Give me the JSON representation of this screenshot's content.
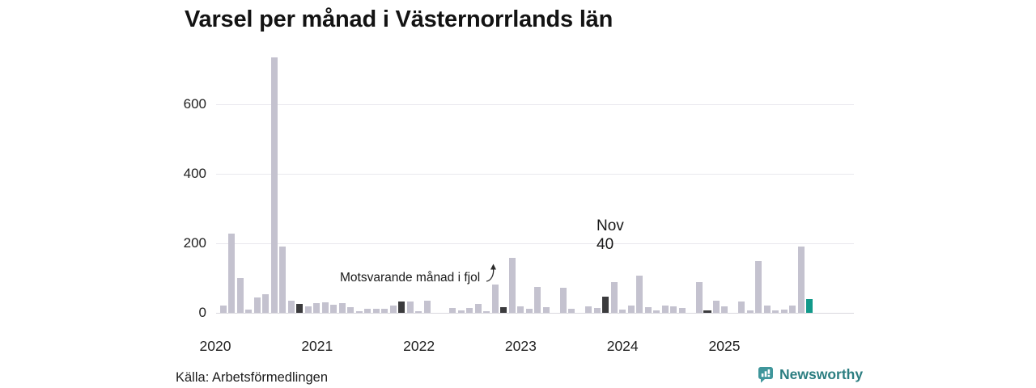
{
  "header": {
    "title": "Varsel per månad i Västernorrlands län"
  },
  "annotation": {
    "text": "Motsvarande månad i fjol"
  },
  "highlight": {
    "line1": "Nov",
    "line2": "40"
  },
  "footer": {
    "source": "Källa: Arbetsförmedlingen",
    "brand": "Newsworthy"
  },
  "colors": {
    "bar": "#c4c2cf",
    "november": "#3b3b3d",
    "current": "#12998a",
    "grid": "#e9e8ee",
    "icon_teal": "#3f969b",
    "brand_text": "#2c7e81"
  },
  "chart_data": {
    "type": "bar",
    "title": "Varsel per månad i Västernorrlands län",
    "xlabel": "",
    "ylabel": "",
    "ylim": [
      0,
      740
    ],
    "yticks": [
      0,
      200,
      400,
      600
    ],
    "x_year_labels": [
      "2020",
      "2021",
      "2022",
      "2023",
      "2024",
      "2025"
    ],
    "legend": "off",
    "grid": "horizontal",
    "series": [
      {
        "year": 2020,
        "month": "Jan",
        "value": 0,
        "role": "normal"
      },
      {
        "year": 2020,
        "month": "Feb",
        "value": 22,
        "role": "normal"
      },
      {
        "year": 2020,
        "month": "Mar",
        "value": 228,
        "role": "normal"
      },
      {
        "year": 2020,
        "month": "Apr",
        "value": 100,
        "role": "normal"
      },
      {
        "year": 2020,
        "month": "Maj",
        "value": 9,
        "role": "normal"
      },
      {
        "year": 2020,
        "month": "Jun",
        "value": 45,
        "role": "normal"
      },
      {
        "year": 2020,
        "month": "Jul",
        "value": 53,
        "role": "normal"
      },
      {
        "year": 2020,
        "month": "Aug",
        "value": 735,
        "role": "normal"
      },
      {
        "year": 2020,
        "month": "Sep",
        "value": 190,
        "role": "normal"
      },
      {
        "year": 2020,
        "month": "Okt",
        "value": 36,
        "role": "normal"
      },
      {
        "year": 2020,
        "month": "Nov",
        "value": 26,
        "role": "november"
      },
      {
        "year": 2020,
        "month": "Dec",
        "value": 18,
        "role": "normal"
      },
      {
        "year": 2021,
        "month": "Jan",
        "value": 28,
        "role": "normal"
      },
      {
        "year": 2021,
        "month": "Feb",
        "value": 31,
        "role": "normal"
      },
      {
        "year": 2021,
        "month": "Mar",
        "value": 24,
        "role": "normal"
      },
      {
        "year": 2021,
        "month": "Apr",
        "value": 29,
        "role": "normal"
      },
      {
        "year": 2021,
        "month": "Maj",
        "value": 16,
        "role": "normal"
      },
      {
        "year": 2021,
        "month": "Jun",
        "value": 5,
        "role": "normal"
      },
      {
        "year": 2021,
        "month": "Jul",
        "value": 11,
        "role": "normal"
      },
      {
        "year": 2021,
        "month": "Aug",
        "value": 11,
        "role": "normal"
      },
      {
        "year": 2021,
        "month": "Sep",
        "value": 12,
        "role": "normal"
      },
      {
        "year": 2021,
        "month": "Okt",
        "value": 22,
        "role": "normal"
      },
      {
        "year": 2021,
        "month": "Nov",
        "value": 33,
        "role": "november"
      },
      {
        "year": 2021,
        "month": "Dec",
        "value": 33,
        "role": "normal"
      },
      {
        "year": 2022,
        "month": "Jan",
        "value": 4,
        "role": "normal"
      },
      {
        "year": 2022,
        "month": "Feb",
        "value": 35,
        "role": "normal"
      },
      {
        "year": 2022,
        "month": "Mar",
        "value": 0,
        "role": "normal"
      },
      {
        "year": 2022,
        "month": "Apr",
        "value": 0,
        "role": "normal"
      },
      {
        "year": 2022,
        "month": "Maj",
        "value": 15,
        "role": "normal"
      },
      {
        "year": 2022,
        "month": "Jun",
        "value": 6,
        "role": "normal"
      },
      {
        "year": 2022,
        "month": "Jul",
        "value": 14,
        "role": "normal"
      },
      {
        "year": 2022,
        "month": "Aug",
        "value": 25,
        "role": "normal"
      },
      {
        "year": 2022,
        "month": "Sep",
        "value": 4,
        "role": "normal"
      },
      {
        "year": 2022,
        "month": "Okt",
        "value": 81,
        "role": "normal"
      },
      {
        "year": 2022,
        "month": "Nov",
        "value": 16,
        "role": "november"
      },
      {
        "year": 2022,
        "month": "Dec",
        "value": 158,
        "role": "normal"
      },
      {
        "year": 2023,
        "month": "Jan",
        "value": 19,
        "role": "normal"
      },
      {
        "year": 2023,
        "month": "Feb",
        "value": 12,
        "role": "normal"
      },
      {
        "year": 2023,
        "month": "Mar",
        "value": 75,
        "role": "normal"
      },
      {
        "year": 2023,
        "month": "Apr",
        "value": 16,
        "role": "normal"
      },
      {
        "year": 2023,
        "month": "Maj",
        "value": 0,
        "role": "normal"
      },
      {
        "year": 2023,
        "month": "Jun",
        "value": 71,
        "role": "normal"
      },
      {
        "year": 2023,
        "month": "Jul",
        "value": 11,
        "role": "normal"
      },
      {
        "year": 2023,
        "month": "Aug",
        "value": 0,
        "role": "normal"
      },
      {
        "year": 2023,
        "month": "Sep",
        "value": 18,
        "role": "normal"
      },
      {
        "year": 2023,
        "month": "Okt",
        "value": 14,
        "role": "normal"
      },
      {
        "year": 2023,
        "month": "Nov",
        "value": 47,
        "role": "november"
      },
      {
        "year": 2023,
        "month": "Dec",
        "value": 89,
        "role": "normal"
      },
      {
        "year": 2024,
        "month": "Jan",
        "value": 9,
        "role": "normal"
      },
      {
        "year": 2024,
        "month": "Feb",
        "value": 21,
        "role": "normal"
      },
      {
        "year": 2024,
        "month": "Mar",
        "value": 107,
        "role": "normal"
      },
      {
        "year": 2024,
        "month": "Apr",
        "value": 16,
        "role": "normal"
      },
      {
        "year": 2024,
        "month": "Maj",
        "value": 6,
        "role": "normal"
      },
      {
        "year": 2024,
        "month": "Jun",
        "value": 22,
        "role": "normal"
      },
      {
        "year": 2024,
        "month": "Jul",
        "value": 19,
        "role": "normal"
      },
      {
        "year": 2024,
        "month": "Aug",
        "value": 14,
        "role": "normal"
      },
      {
        "year": 2024,
        "month": "Sep",
        "value": 0,
        "role": "normal"
      },
      {
        "year": 2024,
        "month": "Okt",
        "value": 88,
        "role": "normal"
      },
      {
        "year": 2024,
        "month": "Nov",
        "value": 4,
        "role": "november-annotated"
      },
      {
        "year": 2024,
        "month": "Dec",
        "value": 35,
        "role": "normal"
      },
      {
        "year": 2025,
        "month": "Jan",
        "value": 18,
        "role": "normal"
      },
      {
        "year": 2025,
        "month": "Feb",
        "value": 0,
        "role": "normal"
      },
      {
        "year": 2025,
        "month": "Mar",
        "value": 33,
        "role": "normal"
      },
      {
        "year": 2025,
        "month": "Apr",
        "value": 7,
        "role": "normal"
      },
      {
        "year": 2025,
        "month": "Maj",
        "value": 149,
        "role": "normal"
      },
      {
        "year": 2025,
        "month": "Jun",
        "value": 20,
        "role": "normal"
      },
      {
        "year": 2025,
        "month": "Jul",
        "value": 6,
        "role": "normal"
      },
      {
        "year": 2025,
        "month": "Aug",
        "value": 10,
        "role": "normal"
      },
      {
        "year": 2025,
        "month": "Sep",
        "value": 20,
        "role": "normal"
      },
      {
        "year": 2025,
        "month": "Okt",
        "value": 191,
        "role": "normal"
      },
      {
        "year": 2025,
        "month": "Nov",
        "value": 40,
        "role": "current"
      }
    ]
  }
}
